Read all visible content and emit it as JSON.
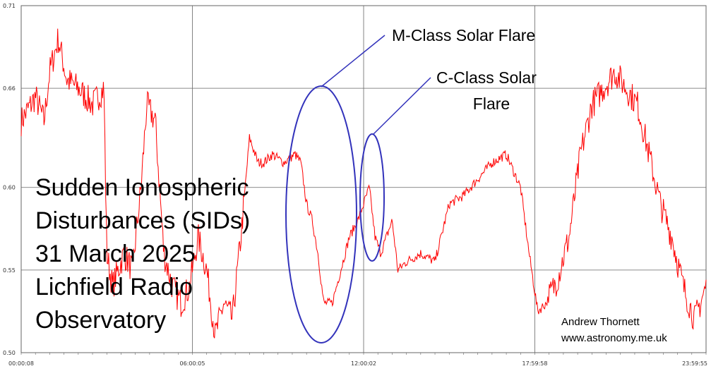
{
  "chart_data": {
    "type": "line",
    "title_lines": [
      "Sudden Ionospheric",
      "Disturbances (SIDs)",
      "31 March 2025",
      "Lichfield Radio",
      "Observatory"
    ],
    "xlabel": "",
    "ylabel": "",
    "ylim": [
      0.5,
      0.71
    ],
    "y_ticks": [
      "0.71",
      "0.66",
      "0.60",
      "0.55",
      "0.50"
    ],
    "x_ticks": [
      "00:00:08",
      "06:00:05",
      "12:00:02",
      "17:59:58",
      "23:59:55"
    ],
    "grid": true,
    "series": [
      {
        "color": "#ff0000",
        "x_hours": [
          0,
          0.5,
          0.8,
          1.0,
          1.3,
          1.6,
          2.0,
          2.5,
          2.9,
          3.0,
          3.2,
          3.6,
          3.9,
          4.2,
          4.4,
          4.7,
          5.0,
          5.3,
          5.6,
          5.9,
          6.2,
          6.5,
          6.8,
          7.1,
          7.4,
          7.7,
          7.9,
          8.0,
          8.2,
          8.3,
          8.5,
          8.8,
          9.2,
          9.6,
          9.8,
          10.0,
          10.2,
          10.4,
          10.6,
          10.9,
          11.2,
          11.5,
          11.8,
          12.0,
          12.2,
          12.4,
          12.6,
          12.8,
          13.0,
          13.2,
          13.5,
          14.0,
          14.5,
          15.0,
          15.5,
          16.0,
          16.5,
          17.0,
          17.5,
          17.8,
          18.1,
          18.4,
          18.8,
          19.2,
          19.6,
          20.0,
          20.4,
          20.8,
          21.2,
          21.6,
          22.0,
          22.4,
          22.8,
          23.2,
          23.6,
          24.0
        ],
        "values": [
          0.64,
          0.655,
          0.64,
          0.67,
          0.69,
          0.665,
          0.66,
          0.65,
          0.66,
          0.56,
          0.54,
          0.56,
          0.55,
          0.6,
          0.65,
          0.64,
          0.56,
          0.54,
          0.53,
          0.54,
          0.57,
          0.55,
          0.51,
          0.53,
          0.52,
          0.57,
          0.61,
          0.63,
          0.62,
          0.615,
          0.615,
          0.62,
          0.615,
          0.62,
          0.615,
          0.59,
          0.58,
          0.56,
          0.53,
          0.53,
          0.55,
          0.57,
          0.58,
          0.59,
          0.6,
          0.57,
          0.56,
          0.57,
          0.58,
          0.55,
          0.555,
          0.56,
          0.555,
          0.59,
          0.595,
          0.605,
          0.615,
          0.62,
          0.6,
          0.56,
          0.525,
          0.53,
          0.545,
          0.57,
          0.62,
          0.65,
          0.66,
          0.67,
          0.66,
          0.65,
          0.62,
          0.59,
          0.57,
          0.54,
          0.52,
          0.54
        ]
      }
    ],
    "annotations": [
      {
        "text": "M-Class Solar Flare",
        "x_hours": 10.5
      },
      {
        "text_lines": [
          "C-Class Solar",
          "Flare"
        ],
        "x_hours": 12.4
      }
    ],
    "credit_lines": [
      "Andrew Thornett",
      "www.astronomy.me.uk"
    ]
  },
  "colors": {
    "series": "#ff0000",
    "annotation": "#3333bb",
    "grid": "#666666",
    "minor_grid": "#dddddd"
  }
}
